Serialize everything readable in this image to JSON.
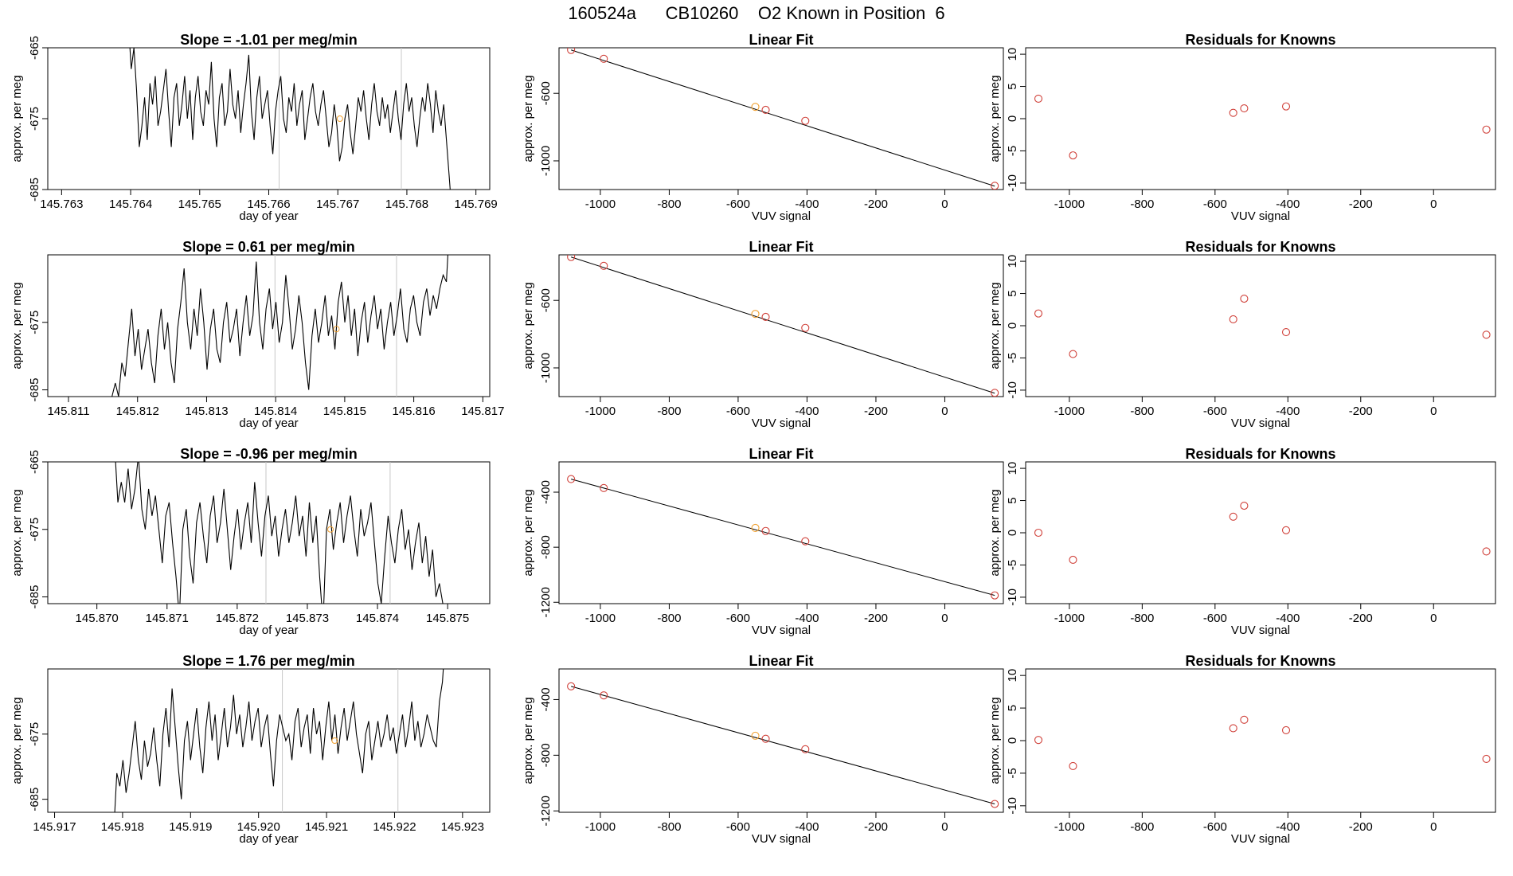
{
  "page": {
    "run_id": "160524a",
    "tank": "CB10260",
    "description": "O2 Known in Position  6"
  },
  "chart_data": [
    {
      "type": "line",
      "title": "Slope =  -1.01  per meg/min",
      "xlabel": "day of year",
      "ylabel": "approx. per meg",
      "xlim": [
        145.7628,
        145.7692
      ],
      "ylim": [
        -685,
        -665
      ],
      "xticks": [
        "145.763",
        "145.764",
        "145.765",
        "145.766",
        "145.767",
        "145.768",
        "145.769"
      ],
      "yticks": [
        "-665",
        "-675",
        "-685"
      ],
      "vlines": [
        145.76615,
        145.76792
      ],
      "x_start": 145.76397,
      "x_end": 145.76865,
      "values": [
        -662,
        -668,
        -665,
        -671,
        -679,
        -676,
        -672,
        -678,
        -670,
        -673,
        -669,
        -676,
        -674,
        -671,
        -668,
        -674,
        -679,
        -672,
        -670,
        -676,
        -673,
        -669,
        -675,
        -671,
        -678,
        -672,
        -669,
        -674,
        -676,
        -671,
        -673,
        -667,
        -675,
        -679,
        -672,
        -670,
        -676,
        -674,
        -668,
        -673,
        -675,
        -671,
        -677,
        -673,
        -670,
        -666,
        -674,
        -678,
        -672,
        -669,
        -675,
        -673,
        -671,
        -676,
        -680,
        -674,
        -671,
        -669,
        -675,
        -677,
        -672,
        -674,
        -670,
        -676,
        -673,
        -671,
        -678,
        -675,
        -672,
        -670,
        -674,
        -676,
        -673,
        -671,
        -675,
        -679,
        -677,
        -673,
        -676,
        -681,
        -679,
        -675,
        -673,
        -677,
        -680,
        -676,
        -672,
        -674,
        -671,
        -675,
        -678,
        -673,
        -670,
        -674,
        -676,
        -672,
        -675,
        -673,
        -677,
        -674,
        -671,
        -675,
        -678,
        -673,
        -670,
        -674,
        -672,
        -676,
        -679,
        -675,
        -672,
        -674,
        -670,
        -673,
        -677,
        -671,
        -674,
        -676,
        -673,
        -678,
        -683,
        -688
      ],
      "marker": {
        "x": 145.76703,
        "y": -675,
        "color": "#f0a030"
      }
    },
    {
      "type": "scatter",
      "title": "Linear Fit",
      "xlabel": "VUV signal",
      "ylabel": "approx. per meg",
      "xlim": [
        -1120,
        170
      ],
      "ylim": [
        -1170,
        -330
      ],
      "xticks": [
        "-1000",
        "-800",
        "-600",
        "-400",
        "-200",
        "0"
      ],
      "yticks": [
        "-600",
        "-1000"
      ],
      "x": [
        -1085,
        -990,
        -550,
        -520,
        -405,
        145
      ],
      "y": [
        -343,
        -395,
        -680,
        -698,
        -763,
        -1148
      ],
      "known_index": 2,
      "fit_line": [
        [
          -1085,
          -343
        ],
        [
          145,
          -1150
        ]
      ]
    },
    {
      "type": "scatter",
      "title": "Residuals for Knowns",
      "xlabel": "VUV signal",
      "ylabel": "approx. per meg",
      "xlim": [
        -1120,
        170
      ],
      "ylim": [
        -11,
        11
      ],
      "xticks": [
        "-1000",
        "-800",
        "-600",
        "-400",
        "-200",
        "0"
      ],
      "yticks": [
        "-10",
        "-5",
        "0",
        "5",
        "10"
      ],
      "x": [
        -1085,
        -990,
        -550,
        -520,
        -405,
        145
      ],
      "y": [
        3.1,
        -5.7,
        0.9,
        1.6,
        1.9,
        -1.7
      ]
    },
    {
      "type": "line",
      "title": "Slope =  0.61  per meg/min",
      "xlabel": "day of year",
      "ylabel": "approx. per meg",
      "xlim": [
        145.8107,
        145.8171
      ],
      "ylim": [
        -686,
        -665
      ],
      "xticks": [
        "145.811",
        "145.812",
        "145.813",
        "145.814",
        "145.815",
        "145.816",
        "145.817"
      ],
      "yticks": [
        "-675",
        "-685"
      ],
      "vlines": [
        145.81399,
        145.81575
      ],
      "x_start": 145.81163,
      "x_end": 145.81652,
      "values": [
        -686,
        -684,
        -686,
        -681,
        -683,
        -678,
        -673,
        -680,
        -676,
        -682,
        -679,
        -676,
        -681,
        -684,
        -677,
        -673,
        -679,
        -675,
        -681,
        -684,
        -676,
        -672,
        -667,
        -675,
        -679,
        -673,
        -677,
        -670,
        -675,
        -682,
        -676,
        -673,
        -679,
        -681,
        -675,
        -672,
        -678,
        -676,
        -673,
        -680,
        -675,
        -671,
        -677,
        -674,
        -666,
        -675,
        -679,
        -673,
        -670,
        -676,
        -672,
        -678,
        -675,
        -668,
        -673,
        -679,
        -676,
        -671,
        -675,
        -681,
        -685,
        -677,
        -673,
        -678,
        -675,
        -671,
        -677,
        -674,
        -679,
        -672,
        -669,
        -675,
        -671,
        -677,
        -673,
        -680,
        -675,
        -672,
        -678,
        -674,
        -671,
        -676,
        -673,
        -679,
        -675,
        -672,
        -677,
        -674,
        -670,
        -676,
        -678,
        -673,
        -671,
        -675,
        -677,
        -672,
        -670,
        -674,
        -671,
        -673,
        -670,
        -668,
        -669,
        -660
      ],
      "marker": {
        "x": 145.81488,
        "y": -676,
        "color": "#f0a030"
      }
    },
    {
      "type": "scatter",
      "title": "Linear Fit",
      "xlabel": "VUV signal",
      "ylabel": "approx. per meg",
      "xlim": [
        -1120,
        170
      ],
      "ylim": [
        -1170,
        -330
      ],
      "xticks": [
        "-1000",
        "-800",
        "-600",
        "-400",
        "-200",
        "0"
      ],
      "yticks": [
        "-600",
        "-1000"
      ],
      "x": [
        -1085,
        -990,
        -550,
        -520,
        -405,
        145
      ],
      "y": [
        -343,
        -395,
        -680,
        -698,
        -763,
        -1148
      ],
      "known_index": 2,
      "fit_line": [
        [
          -1085,
          -343
        ],
        [
          145,
          -1150
        ]
      ]
    },
    {
      "type": "scatter",
      "title": "Residuals for Knowns",
      "xlabel": "VUV signal",
      "ylabel": "approx. per meg",
      "xlim": [
        -1120,
        170
      ],
      "ylim": [
        -11,
        11
      ],
      "xticks": [
        "-1000",
        "-800",
        "-600",
        "-400",
        "-200",
        "0"
      ],
      "yticks": [
        "-10",
        "-5",
        "0",
        "5",
        "10"
      ],
      "x": [
        -1085,
        -990,
        -550,
        -520,
        -405,
        145
      ],
      "y": [
        1.9,
        -4.4,
        1.0,
        4.2,
        -1.0,
        -1.4
      ]
    },
    {
      "type": "line",
      "title": "Slope =  -0.96  per meg/min",
      "xlabel": "day of year",
      "ylabel": "approx. per meg",
      "xlim": [
        145.8693,
        145.8756
      ],
      "ylim": [
        -686,
        -665
      ],
      "xticks": [
        "145.870",
        "145.871",
        "145.872",
        "145.873",
        "145.874",
        "145.875"
      ],
      "yticks": [
        "-665",
        "-675",
        "-685"
      ],
      "vlines": [
        145.87241,
        145.87418
      ],
      "x_start": 145.87025,
      "x_end": 145.87498,
      "values": [
        -662,
        -671,
        -668,
        -671,
        -666,
        -672,
        -669,
        -664,
        -672,
        -675,
        -669,
        -673,
        -670,
        -675,
        -680,
        -673,
        -671,
        -677,
        -682,
        -688,
        -675,
        -672,
        -679,
        -683,
        -674,
        -671,
        -676,
        -680,
        -673,
        -670,
        -677,
        -674,
        -669,
        -675,
        -681,
        -676,
        -672,
        -678,
        -674,
        -671,
        -677,
        -668,
        -674,
        -679,
        -673,
        -670,
        -676,
        -673,
        -679,
        -675,
        -672,
        -677,
        -674,
        -670,
        -676,
        -673,
        -679,
        -671,
        -677,
        -673,
        -682,
        -689,
        -675,
        -672,
        -678,
        -674,
        -671,
        -677,
        -673,
        -670,
        -675,
        -679,
        -672,
        -676,
        -674,
        -671,
        -677,
        -683,
        -686,
        -679,
        -673,
        -677,
        -680,
        -675,
        -672,
        -678,
        -675,
        -681,
        -677,
        -674,
        -680,
        -676,
        -682,
        -678,
        -685,
        -683,
        -686,
        -688
      ],
      "marker": {
        "x": 145.87333,
        "y": -675,
        "color": "#f0a030"
      }
    },
    {
      "type": "scatter",
      "title": "Linear Fit",
      "xlabel": "VUV signal",
      "ylabel": "approx. per meg",
      "xlim": [
        -1120,
        170
      ],
      "ylim": [
        -1210,
        -180
      ],
      "xticks": [
        "-1000",
        "-800",
        "-600",
        "-400",
        "-200",
        "0"
      ],
      "yticks": [
        "-400",
        "-800",
        "-1200"
      ],
      "x": [
        -1085,
        -990,
        -550,
        -520,
        -405,
        145
      ],
      "y": [
        -305,
        -370,
        -660,
        -682,
        -757,
        -1150
      ],
      "known_index": 2,
      "fit_line": [
        [
          -1085,
          -305
        ],
        [
          145,
          -1150
        ]
      ]
    },
    {
      "type": "scatter",
      "title": "Residuals for Knowns",
      "xlabel": "VUV signal",
      "ylabel": "approx. per meg",
      "xlim": [
        -1120,
        170
      ],
      "ylim": [
        -11,
        11
      ],
      "xticks": [
        "-1000",
        "-800",
        "-600",
        "-400",
        "-200",
        "0"
      ],
      "yticks": [
        "-10",
        "-5",
        "0",
        "5",
        "10"
      ],
      "x": [
        -1085,
        -990,
        -550,
        -520,
        -405,
        145
      ],
      "y": [
        0.0,
        -4.2,
        2.5,
        4.2,
        0.4,
        -2.9
      ]
    },
    {
      "type": "line",
      "title": "Slope =  1.76  per meg/min",
      "xlabel": "day of year",
      "ylabel": "approx. per meg",
      "xlim": [
        145.9169,
        145.9234
      ],
      "ylim": [
        -687,
        -665
      ],
      "xticks": [
        "145.917",
        "145.918",
        "145.919",
        "145.920",
        "145.921",
        "145.922",
        "145.923"
      ],
      "yticks": [
        "-675",
        "-685"
      ],
      "vlines": [
        145.92035,
        145.92205
      ],
      "x_start": 145.91787,
      "x_end": 145.92275,
      "values": [
        -690,
        -681,
        -683,
        -679,
        -684,
        -681,
        -677,
        -673,
        -679,
        -682,
        -676,
        -680,
        -678,
        -674,
        -679,
        -683,
        -675,
        -671,
        -677,
        -668,
        -674,
        -680,
        -685,
        -676,
        -673,
        -679,
        -675,
        -671,
        -677,
        -681,
        -674,
        -670,
        -676,
        -672,
        -679,
        -675,
        -671,
        -677,
        -674,
        -669,
        -675,
        -672,
        -677,
        -674,
        -670,
        -676,
        -673,
        -671,
        -677,
        -674,
        -672,
        -678,
        -683,
        -676,
        -672,
        -674,
        -676,
        -675,
        -679,
        -673,
        -671,
        -677,
        -674,
        -672,
        -678,
        -671,
        -675,
        -673,
        -679,
        -674,
        -670,
        -676,
        -672,
        -678,
        -674,
        -671,
        -676,
        -673,
        -670,
        -675,
        -678,
        -681,
        -675,
        -673,
        -679,
        -676,
        -673,
        -677,
        -675,
        -672,
        -676,
        -674,
        -678,
        -675,
        -672,
        -677,
        -674,
        -670,
        -676,
        -673,
        -677,
        -675,
        -672,
        -674,
        -676,
        -677,
        -670,
        -667,
        -660
      ],
      "marker": {
        "x": 145.92112,
        "y": -676,
        "color": "#f0a030"
      }
    },
    {
      "type": "scatter",
      "title": "Linear Fit",
      "xlabel": "VUV signal",
      "ylabel": "approx. per meg",
      "xlim": [
        -1120,
        170
      ],
      "ylim": [
        -1210,
        -180
      ],
      "xticks": [
        "-1000",
        "-800",
        "-600",
        "-400",
        "-200",
        "0"
      ],
      "yticks": [
        "-400",
        "-800",
        "-1200"
      ],
      "x": [
        -1085,
        -990,
        -550,
        -520,
        -405,
        145
      ],
      "y": [
        -305,
        -370,
        -660,
        -682,
        -757,
        -1150
      ],
      "known_index": 2,
      "fit_line": [
        [
          -1085,
          -305
        ],
        [
          145,
          -1150
        ]
      ]
    },
    {
      "type": "scatter",
      "title": "Residuals for Knowns",
      "xlabel": "VUV signal",
      "ylabel": "approx. per meg",
      "xlim": [
        -1120,
        170
      ],
      "ylim": [
        -11,
        11
      ],
      "xticks": [
        "-1000",
        "-800",
        "-600",
        "-400",
        "-200",
        "0"
      ],
      "yticks": [
        "-10",
        "-5",
        "0",
        "5",
        "10"
      ],
      "x": [
        -1085,
        -990,
        -550,
        -520,
        -405,
        145
      ],
      "y": [
        0.1,
        -3.9,
        1.9,
        3.2,
        1.6,
        -2.8
      ]
    }
  ]
}
